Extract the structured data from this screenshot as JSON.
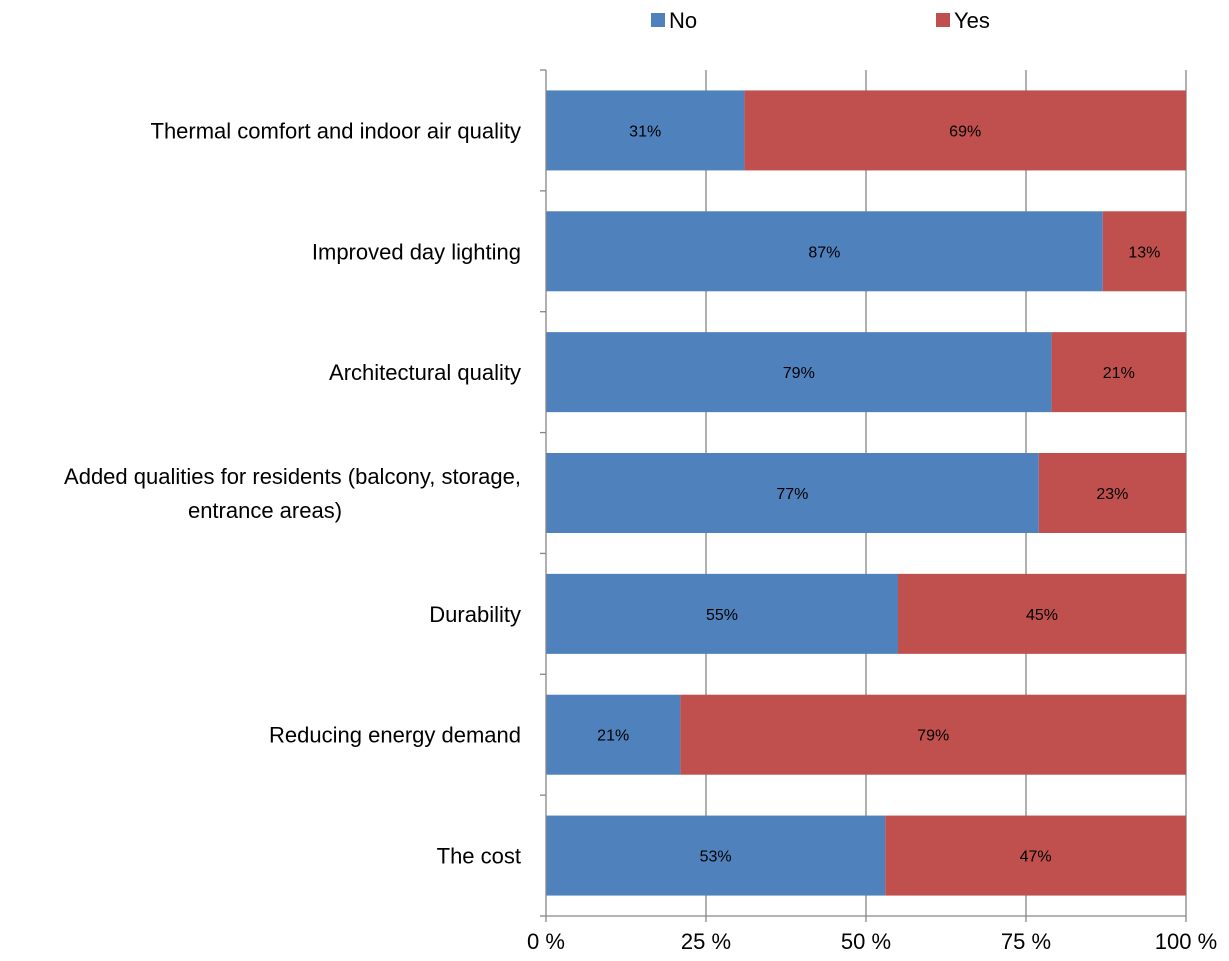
{
  "chart_data": {
    "type": "bar",
    "orientation": "horizontal",
    "stacked": "percent",
    "categories": [
      "Thermal comfort and indoor air quality",
      "Improved day lighting",
      "Architectural quality",
      "Added qualities for residents (balcony, storage, entrance areas)",
      "Durability",
      "Reducing energy demand",
      "The cost"
    ],
    "category_lines": [
      [
        "Thermal comfort and indoor air quality"
      ],
      [
        "Improved day lighting"
      ],
      [
        "Architectural quality"
      ],
      [
        "Added qualities for residents (balcony, storage,",
        "entrance areas)"
      ],
      [
        "Durability"
      ],
      [
        "Reducing energy demand"
      ],
      [
        "The cost"
      ]
    ],
    "series": [
      {
        "name": "No",
        "color": "#4F81BD",
        "values": [
          31,
          87,
          79,
          77,
          55,
          21,
          53
        ],
        "labels": [
          "31%",
          "87%",
          "79%",
          "77%",
          "55%",
          "21%",
          "53%"
        ]
      },
      {
        "name": "Yes",
        "color": "#C0504D",
        "values": [
          69,
          13,
          21,
          23,
          45,
          79,
          47
        ],
        "labels": [
          "69%",
          "13%",
          "21%",
          "23%",
          "45%",
          "79%",
          "47%"
        ]
      }
    ],
    "xlim": [
      0,
      100
    ],
    "x_ticks": [
      0,
      25,
      50,
      75,
      100
    ],
    "x_tick_labels": [
      "0 %",
      "25 %",
      "50 %",
      "75 %",
      "100 %"
    ],
    "grid": "vertical",
    "legend_position": "top",
    "title": "",
    "xlabel": "",
    "ylabel": ""
  }
}
